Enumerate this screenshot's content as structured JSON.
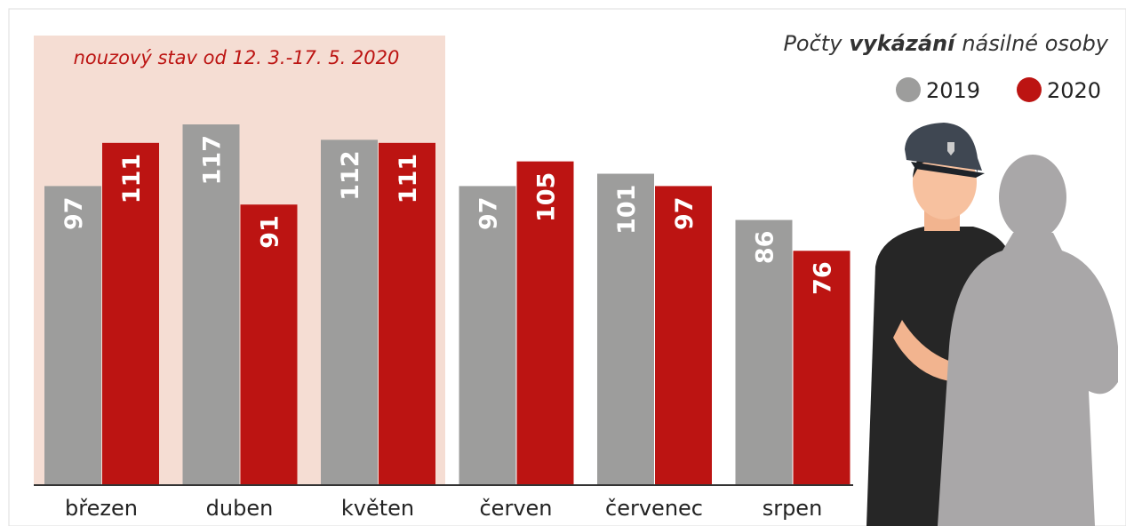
{
  "chart_data": {
    "type": "bar",
    "title": [
      "Počty",
      "vykázání",
      "násilné osoby"
    ],
    "annotation": "nouzový stav od 12. 3.-17. 5. 2020",
    "categories": [
      "březen",
      "duben",
      "květen",
      "červen",
      "červenec",
      "srpen"
    ],
    "series": [
      {
        "name": "2019",
        "color": "#9d9d9c",
        "values": [
          97,
          117,
          112,
          97,
          101,
          86
        ]
      },
      {
        "name": "2020",
        "color": "#bc1412",
        "values": [
          111,
          91,
          111,
          105,
          97,
          76
        ]
      }
    ]
  }
}
